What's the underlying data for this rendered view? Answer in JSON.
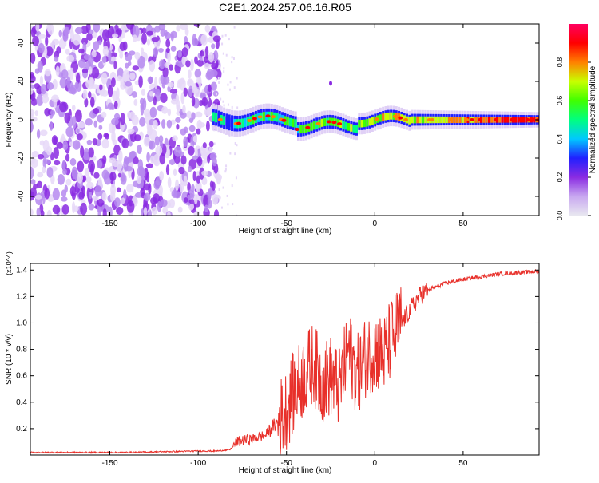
{
  "title": "C2E1.2024.257.06.16.R05",
  "colorbar": {
    "label": "Normalized spectral amplitude",
    "ticks": [
      "0.0",
      "0.2",
      "0.4",
      "0.6",
      "0.8"
    ],
    "stops": [
      "#e8e8f0",
      "#c8a8f0",
      "#8a2be2",
      "#2020ff",
      "#00c8ff",
      "#00ff80",
      "#40ff00",
      "#c8ff00",
      "#ff8000",
      "#ff0000",
      "#ff0060"
    ]
  },
  "chart_data": [
    {
      "type": "heatmap",
      "xlabel": "Height of straight line (km)",
      "ylabel": "Frequency (Hz)",
      "xlim": [
        -195,
        93
      ],
      "ylim": [
        -50,
        50
      ],
      "xticks": [
        -150,
        -100,
        -50,
        0,
        50
      ],
      "yticks": [
        -40,
        -20,
        0,
        20,
        40
      ],
      "grid": false,
      "description_regions": {
        "noise_band": {
          "x": [
            -195,
            -92
          ],
          "level": 0.15
        },
        "signal_band": {
          "x": [
            -92,
            93
          ],
          "center_freq": 0,
          "level_at_end": 0.95
        }
      },
      "spot": {
        "x": -25,
        "freq": 19
      }
    },
    {
      "type": "line",
      "xlabel": "Height of straight line (km)",
      "ylabel": "SNR (10 * v/v)",
      "scale_note": "(x10^4)",
      "xlim": [
        -195,
        93
      ],
      "ylim": [
        0,
        1.45
      ],
      "xticks": [
        -150,
        -100,
        -50,
        0,
        50
      ],
      "yticks": [
        0.2,
        0.4,
        0.6,
        0.8,
        1.0,
        1.2,
        1.4
      ],
      "color": "#e8302a",
      "series": [
        {
          "x": [
            -195,
            -180,
            -160,
            -140,
            -120,
            -100,
            -90,
            -82,
            -78,
            -70,
            -62,
            -55,
            -50,
            -45,
            -40,
            -35,
            -30,
            -25,
            -20,
            -15,
            -10,
            -5,
            0,
            5,
            10,
            15,
            20,
            25,
            30,
            40,
            50,
            60,
            70,
            80,
            93
          ],
          "y": [
            0.02,
            0.02,
            0.02,
            0.02,
            0.025,
            0.03,
            0.03,
            0.04,
            0.1,
            0.12,
            0.15,
            0.25,
            0.35,
            0.5,
            0.6,
            0.7,
            0.55,
            0.6,
            0.5,
            0.8,
            0.6,
            0.75,
            0.8,
            0.75,
            0.9,
            1.0,
            1.1,
            1.2,
            1.25,
            1.3,
            1.33,
            1.35,
            1.37,
            1.38,
            1.39
          ]
        }
      ]
    }
  ]
}
